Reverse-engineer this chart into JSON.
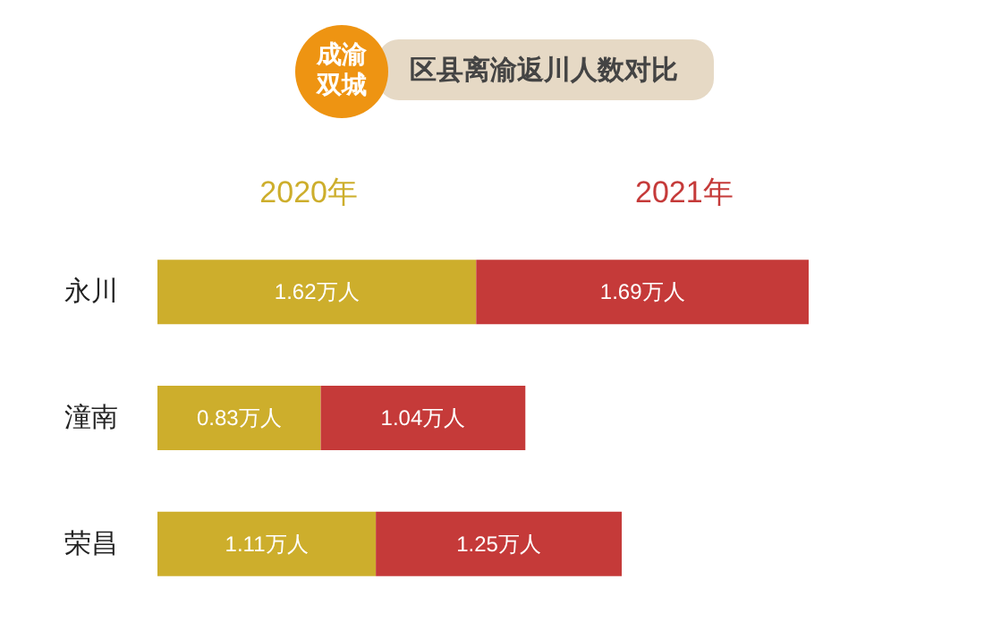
{
  "chart_data": {
    "type": "bar",
    "title": "区县离渝返川人数对比",
    "subtitle": "成渝双城",
    "orientation": "horizontal",
    "stacked": true,
    "categories": [
      "永川",
      "潼南",
      "荣昌"
    ],
    "series": [
      {
        "name": "2020年",
        "color": "#cdae2c",
        "values": [
          1.62,
          0.83,
          1.11
        ],
        "value_labels": [
          "1.62万人",
          "0.83万人",
          "1.11万人"
        ]
      },
      {
        "name": "2021年",
        "color": "#c53a39",
        "values": [
          1.69,
          1.04,
          1.25
        ],
        "value_labels": [
          "1.69万人",
          "1.04万人",
          "1.25万人"
        ]
      }
    ],
    "legend": "top"
  }
}
